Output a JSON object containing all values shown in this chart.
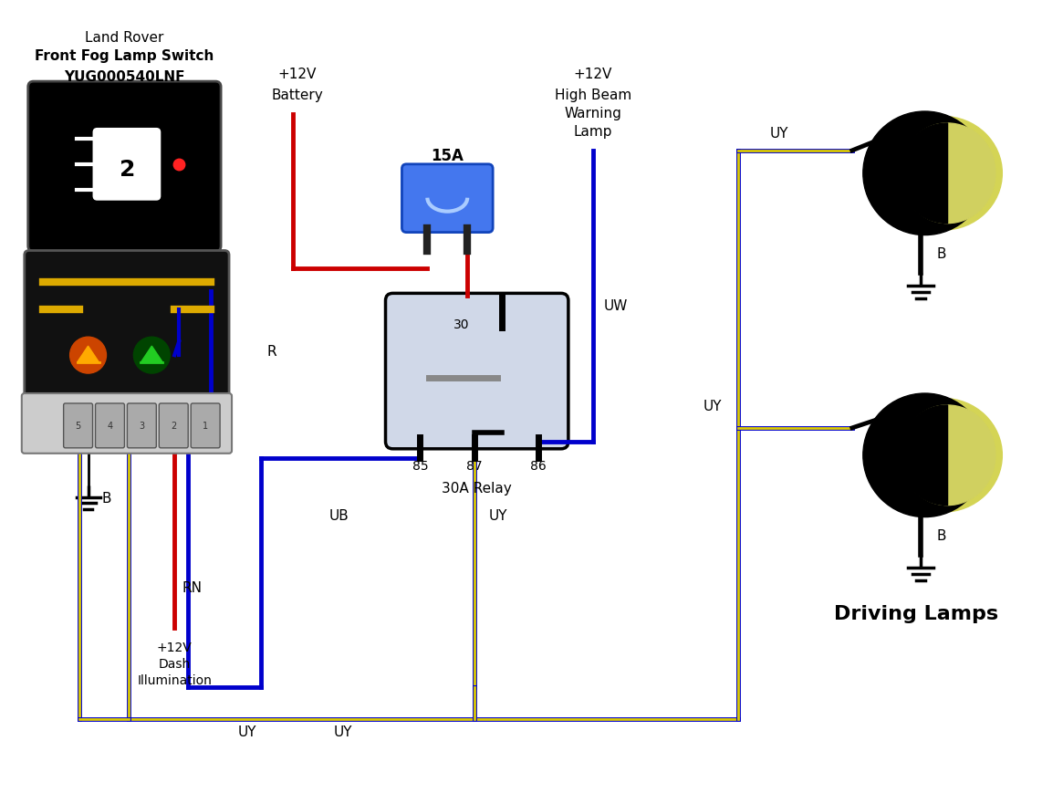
{
  "bg_color": "#ffffff",
  "switch_label1": "Land Rover",
  "switch_label2": "Front Fog Lamp Switch",
  "switch_label3": "YUG000540LNF",
  "relay_label": "30A Relay",
  "fuse_label": "15A",
  "driving_lamps_label": "Driving Lamps",
  "blue": "#0000cc",
  "red": "#cc0000",
  "yellow": "#ccaa00",
  "black": "#000000",
  "white": "#ffffff",
  "relay_bg": "#d0d8e8",
  "fuse_blue": "#2255cc",
  "fuse_blue_body": "#3366ee"
}
